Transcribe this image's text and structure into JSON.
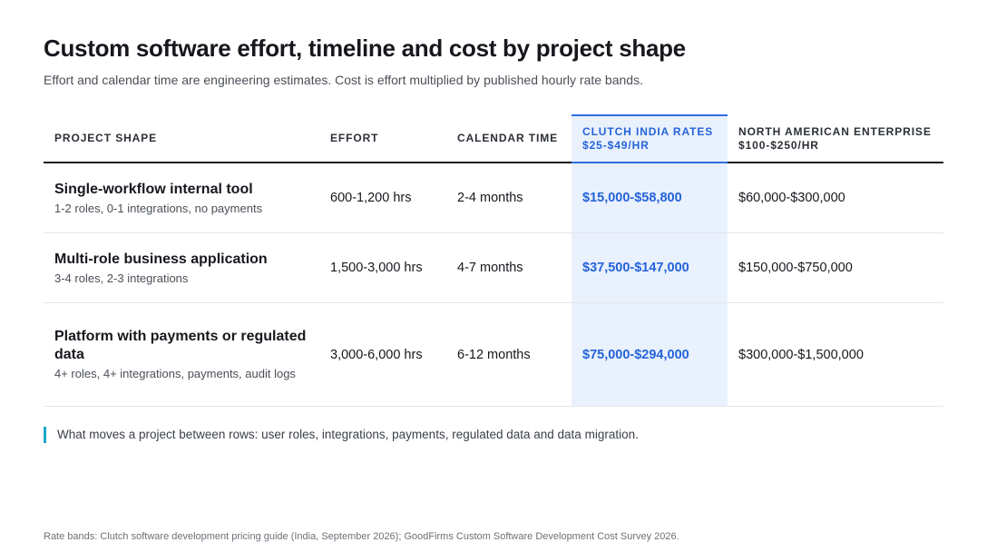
{
  "title": "Custom software effort, timeline and cost by project shape",
  "subtitle": "Effort and calendar time are engineering estimates. Cost is effort multiplied by published hourly rate bands.",
  "table": {
    "headers": {
      "shape": "PROJECT SHAPE",
      "effort": "EFFORT",
      "calendar": "CALENDAR TIME",
      "india_line1": "CLUTCH INDIA RATES",
      "india_line2": "$25-$49/HR",
      "na_line1": "NORTH AMERICAN ENTERPRISE",
      "na_line2": "$100-$250/HR"
    },
    "rows": [
      {
        "name": "Single-workflow internal tool",
        "desc": "1-2 roles, 0-1 integrations, no payments",
        "effort": "600-1,200 hrs",
        "calendar": "2-4 months",
        "india": "$15,000-$58,800",
        "na": "$60,000-$300,000"
      },
      {
        "name": "Multi-role business application",
        "desc": "3-4 roles, 2-3 integrations",
        "effort": "1,500-3,000 hrs",
        "calendar": "4-7 months",
        "india": "$37,500-$147,000",
        "na": "$150,000-$750,000"
      },
      {
        "name": "Platform with payments or regulated data",
        "desc": "4+ roles, 4+ integrations, payments, audit logs",
        "effort": "3,000-6,000 hrs",
        "calendar": "6-12 months",
        "india": "$75,000-$294,000",
        "na": "$300,000-$1,500,000"
      }
    ]
  },
  "callout": "What moves a project between rows: user roles, integrations, payments, regulated data and data migration.",
  "footnote": "Rate bands: Clutch software development pricing guide (India, September 2026); GoodFirms Custom Software Development Cost Survey 2026.",
  "colors": {
    "accent_blue": "#2563d9",
    "highlight_bg": "#e9f1fd",
    "callout_bar": "#1aa8c8"
  }
}
